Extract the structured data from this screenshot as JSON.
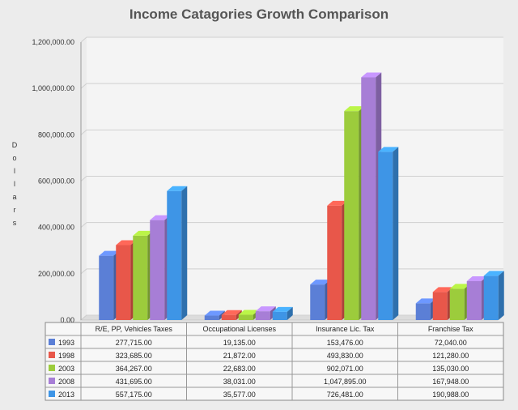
{
  "chart_data": {
    "type": "bar",
    "title": "Income Catagories Growth Comparison",
    "ylabel": "Dollars",
    "ylim": [
      0,
      1200000
    ],
    "yticks": [
      "0.00",
      "200,000.00",
      "400,000.00",
      "600,000.00",
      "800,000.00",
      "1,000,000.00",
      "1,200,000.00"
    ],
    "categories": [
      "R/E, PP, Vehicles Taxes",
      "Occupational Licenses",
      "Insurance Lic. Tax",
      "Franchise Tax"
    ],
    "series": [
      {
        "name": "1993",
        "color": "#5b7fd6",
        "values": [
          277715,
          19135,
          153476,
          72040
        ],
        "labels": [
          "277,715.00",
          "19,135.00",
          "153,476.00",
          "72,040.00"
        ]
      },
      {
        "name": "1998",
        "color": "#e8574a",
        "values": [
          323685,
          21872,
          493830,
          121280
        ],
        "labels": [
          "323,685.00",
          "21,872.00",
          "493,830.00",
          "121,280.00"
        ]
      },
      {
        "name": "2003",
        "color": "#9ccc3c",
        "values": [
          364267,
          22683,
          902071,
          135030
        ],
        "labels": [
          "364,267.00",
          "22,683.00",
          "902,071.00",
          "135,030.00"
        ]
      },
      {
        "name": "2008",
        "color": "#a77ed6",
        "values": [
          431695,
          38031,
          1047895,
          167948
        ],
        "labels": [
          "431,695.00",
          "38,031.00",
          "1,047,895.00",
          "167,948.00"
        ]
      },
      {
        "name": "2013",
        "color": "#3e95e6",
        "values": [
          557175,
          35577,
          726481,
          190988
        ],
        "labels": [
          "557,175.00",
          "35,577.00",
          "726,481.00",
          "190,988.00"
        ]
      }
    ],
    "grid": true,
    "legend": "data-table"
  }
}
